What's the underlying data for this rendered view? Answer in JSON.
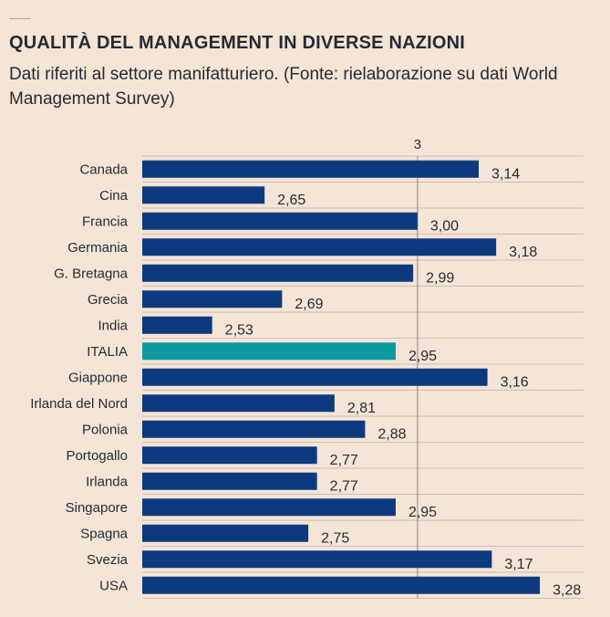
{
  "header": {
    "title": "QUALITÀ DEL MANAGEMENT IN DIVERSE NAZIONI",
    "subtitle": "Dati riferiti al settore manifatturiero. (Fonte: rielaborazione su dati World Management Survey)"
  },
  "colors": {
    "background": "#f4e5d6",
    "bar": "#0d3a7e",
    "highlight": "#0d9a9e",
    "grid": "#c9bfb4",
    "reference_line": "#8a857f"
  },
  "chart_data": {
    "type": "bar",
    "orientation": "horizontal",
    "title": "QUALITÀ DEL MANAGEMENT IN DIVERSE NAZIONI",
    "subtitle": "Dati riferiti al settore manifatturiero. (Fonte: rielaborazione su dati World Management Survey)",
    "reference_tick": "3",
    "reference_value": 3,
    "categories": [
      "Canada",
      "Cina",
      "Francia",
      "Germania",
      "G. Bretagna",
      "Grecia",
      "India",
      "ITALIA",
      "Giappone",
      "Irlanda del Nord",
      "Polonia",
      "Portogallo",
      "Irlanda",
      "Singapore",
      "Spagna",
      "Svezia",
      "USA"
    ],
    "values": [
      3.14,
      2.65,
      3.0,
      3.18,
      2.99,
      2.69,
      2.53,
      2.95,
      3.16,
      2.81,
      2.88,
      2.77,
      2.77,
      2.95,
      2.75,
      3.17,
      3.28
    ],
    "value_labels": [
      "3,14",
      "2,65",
      "3,00",
      "3,18",
      "2,99",
      "2,69",
      "2,53",
      "2,95",
      "3,16",
      "2,81",
      "2,88",
      "2,77",
      "2,77",
      "2,95",
      "2,75",
      "3,17",
      "3,28"
    ],
    "highlight_category": "ITALIA",
    "xlim": [
      2.37,
      3.38
    ],
    "grid": true
  }
}
